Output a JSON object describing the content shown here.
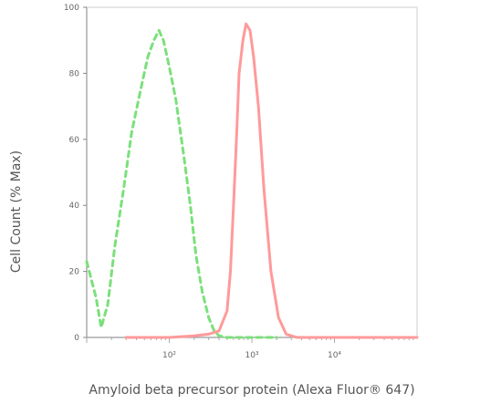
{
  "chart_data": {
    "type": "line",
    "title": "",
    "xlabel": "Amyloid beta precursor protein (Alexa Fluor® 647)",
    "ylabel": "Cell Count (% Max)",
    "x_scale": "log",
    "xlim": [
      10,
      100000
    ],
    "ylim": [
      0,
      100
    ],
    "x_ticks": [
      100,
      1000,
      10000
    ],
    "x_tick_labels": [
      "10²",
      "10³",
      "10⁴"
    ],
    "y_ticks": [
      0,
      20,
      40,
      60,
      80,
      100
    ],
    "y_tick_labels": [
      "0",
      "20",
      "40",
      "60",
      "80",
      "100"
    ],
    "grid": false,
    "legend": "none",
    "series": [
      {
        "color": "#7be07b",
        "dash": "dashed",
        "x": [
          10,
          13,
          15,
          18,
          22,
          28,
          35,
          45,
          55,
          65,
          75,
          85,
          100,
          120,
          150,
          180,
          210,
          250,
          300,
          350,
          400,
          500,
          700,
          1000,
          2000
        ],
        "y": [
          23,
          12,
          3,
          10,
          28,
          45,
          62,
          75,
          85,
          90,
          93,
          90,
          82,
          72,
          55,
          40,
          25,
          14,
          6,
          2,
          0.5,
          0,
          0,
          0,
          0
        ]
      },
      {
        "color": "#ff9a9a",
        "dash": "solid",
        "x": [
          30,
          100,
          200,
          300,
          400,
          500,
          550,
          600,
          650,
          700,
          780,
          850,
          950,
          1050,
          1200,
          1400,
          1700,
          2100,
          2600,
          3500,
          10000,
          100000
        ],
        "y": [
          0,
          0,
          0.5,
          1,
          2,
          8,
          20,
          40,
          60,
          80,
          90,
          95,
          93,
          85,
          70,
          45,
          20,
          6,
          1,
          0,
          0,
          0
        ]
      }
    ]
  }
}
